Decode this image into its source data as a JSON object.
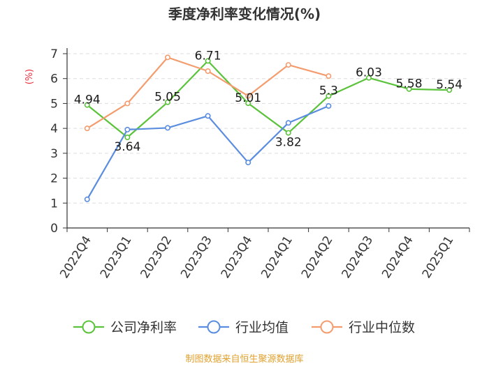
{
  "title": "季度净利率变化情况(%)",
  "source": "制图数据来自恒生聚源数据库",
  "chart_data": {
    "type": "line",
    "title": "季度净利率变化情况(%)",
    "ylabel": "(%)",
    "xlabel": "",
    "ylim": [
      0,
      7
    ],
    "yticks": [
      "0",
      "1",
      "2",
      "3",
      "4",
      "5",
      "6",
      "7"
    ],
    "grid": true,
    "legend_position": "bottom",
    "categories": [
      "2022Q4",
      "2023Q1",
      "2023Q2",
      "2023Q3",
      "2023Q4",
      "2024Q1",
      "2024Q2",
      "2024Q3",
      "2024Q4",
      "2025Q1"
    ],
    "series": [
      {
        "name": "公司净利率",
        "color": "#5bc33b",
        "values": [
          4.94,
          3.64,
          5.05,
          6.71,
          5.01,
          3.82,
          5.3,
          6.03,
          5.58,
          5.54
        ],
        "labels": [
          "4.94",
          "3.64",
          "5.05",
          "6.71",
          "5.01",
          "3.82",
          "5.3",
          "6.03",
          "5.58",
          "5.54"
        ]
      },
      {
        "name": "行业均值",
        "color": "#5a8de0",
        "values": [
          1.15,
          3.95,
          4.02,
          4.5,
          2.63,
          4.22,
          4.9,
          null,
          null,
          null
        ]
      },
      {
        "name": "行业中位数",
        "color": "#f49c6e",
        "values": [
          4.0,
          5.0,
          6.85,
          6.3,
          5.3,
          6.55,
          6.1,
          null,
          null,
          null
        ]
      }
    ]
  }
}
